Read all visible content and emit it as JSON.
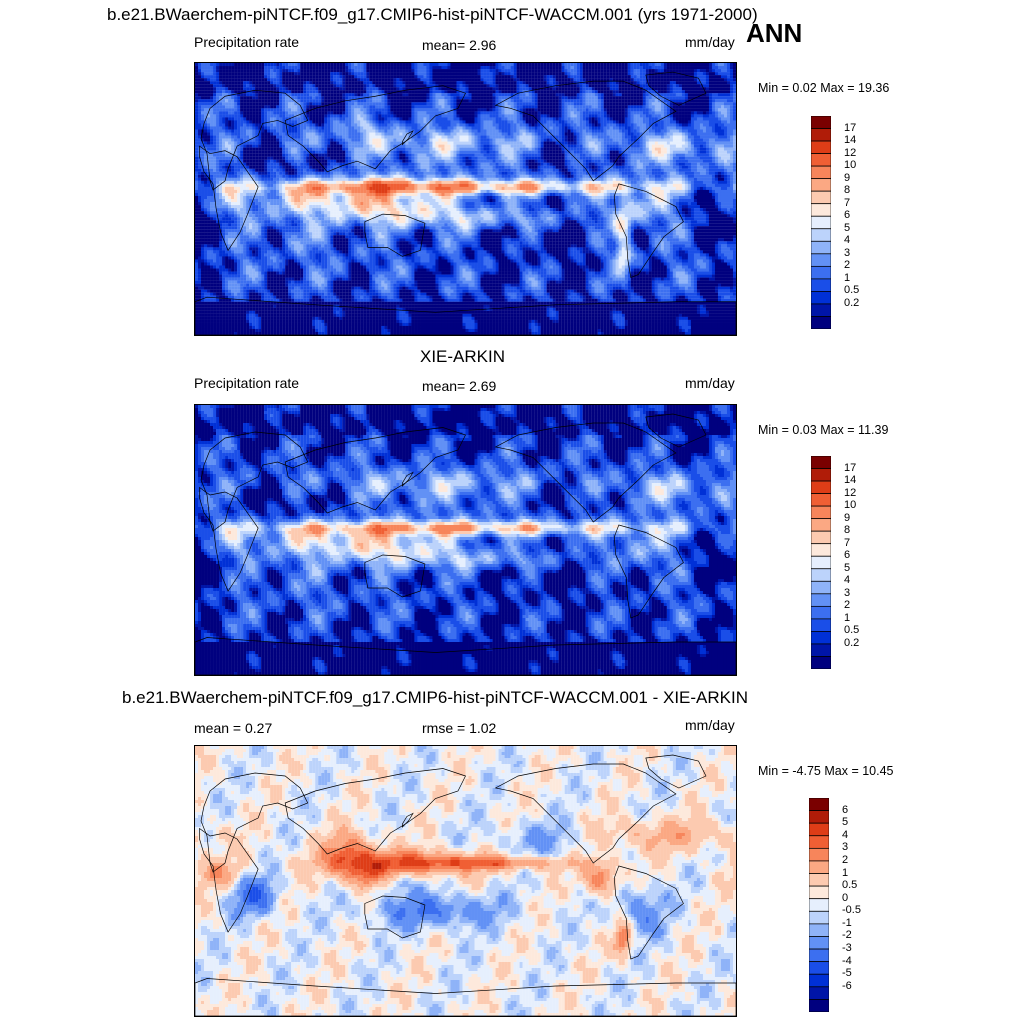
{
  "header": {
    "main_title": "b.e21.BWaerchem-piNTCF.f09_g17.CMIP6-hist-piNTCF-WACCM.001 (yrs 1971-2000)",
    "season": "ANN"
  },
  "panels": [
    {
      "title": "",
      "left_label": "Precipitation rate",
      "mid_label": "mean=   2.96",
      "unit": "mm/day",
      "minmax": "Min =   0.02 Max =  19.36",
      "kind": "model"
    },
    {
      "title": "XIE-ARKIN",
      "left_label": "Precipitation rate",
      "mid_label": "mean=   2.69",
      "unit": "mm/day",
      "minmax": "Min =   0.03 Max =  11.39",
      "kind": "obs"
    },
    {
      "title": "b.e21.BWaerchem-piNTCF.f09_g17.CMIP6-hist-piNTCF-WACCM.001 - XIE-ARKIN",
      "left_label": "mean =   0.27",
      "mid_label": "rmse =   1.02",
      "unit": "mm/day",
      "minmax": "Min =  -4.75 Max =  10.45",
      "kind": "diff"
    }
  ],
  "chart_data": [
    {
      "type": "heatmap",
      "title": "b.e21.BWaerchem-piNTCF.f09_g17.CMIP6-hist-piNTCF-WACCM.001 (yrs 1971-2000)",
      "variable": "Precipitation rate",
      "units": "mm/day",
      "mean": 2.96,
      "min": 0.02,
      "max": 19.36,
      "contour_levels": [
        0.2,
        0.5,
        1,
        2,
        3,
        4,
        5,
        6,
        7,
        8,
        9,
        10,
        12,
        14,
        17
      ],
      "colors": [
        "#00007f",
        "#0015a8",
        "#0030d6",
        "#1a4ee8",
        "#3c6ff0",
        "#6291f5",
        "#8fb3f8",
        "#bcd3fb",
        "#e6effd",
        "#fde9dc",
        "#fccab0",
        "#fba883",
        "#f7855b",
        "#f05f34",
        "#de3d17",
        "#b01c08",
        "#7a0000"
      ]
    },
    {
      "type": "heatmap",
      "title": "XIE-ARKIN",
      "variable": "Precipitation rate",
      "units": "mm/day",
      "mean": 2.69,
      "min": 0.03,
      "max": 11.39,
      "contour_levels": [
        0.2,
        0.5,
        1,
        2,
        3,
        4,
        5,
        6,
        7,
        8,
        9,
        10,
        12,
        14,
        17
      ],
      "colors": [
        "#00007f",
        "#0015a8",
        "#0030d6",
        "#1a4ee8",
        "#3c6ff0",
        "#6291f5",
        "#8fb3f8",
        "#bcd3fb",
        "#e6effd",
        "#fde9dc",
        "#fccab0",
        "#fba883",
        "#f7855b",
        "#f05f34",
        "#de3d17",
        "#b01c08",
        "#7a0000"
      ]
    },
    {
      "type": "heatmap",
      "title": "b.e21.BWaerchem-piNTCF.f09_g17.CMIP6-hist-piNTCF-WACCM.001 - XIE-ARKIN",
      "units": "mm/day",
      "mean": 0.27,
      "rmse": 1.02,
      "min": -4.75,
      "max": 10.45,
      "contour_levels": [
        -6,
        -5,
        -4,
        -3,
        -2,
        -1,
        -0.5,
        0,
        0.5,
        1,
        2,
        3,
        4,
        5,
        6
      ],
      "colors": [
        "#00007f",
        "#0015a8",
        "#0030d6",
        "#1a4ee8",
        "#3c6ff0",
        "#6291f5",
        "#8fb3f8",
        "#bcd3fb",
        "#e6effd",
        "#fde9dc",
        "#fccab0",
        "#fba883",
        "#f7855b",
        "#f05f34",
        "#de3d17",
        "#b01c08",
        "#7a0000"
      ]
    }
  ],
  "legend_ticks": {
    "precip": [
      "17",
      "14",
      "12",
      "10",
      "9",
      "8",
      "7",
      "6",
      "5",
      "4",
      "3",
      "2",
      "1",
      "0.5",
      "0.2"
    ],
    "diff": [
      "6",
      "5",
      "4",
      "3",
      "2",
      "1",
      "0.5",
      "0",
      "-0.5",
      "-1",
      "-2",
      "-3",
      "-4",
      "-5",
      "-6"
    ]
  }
}
